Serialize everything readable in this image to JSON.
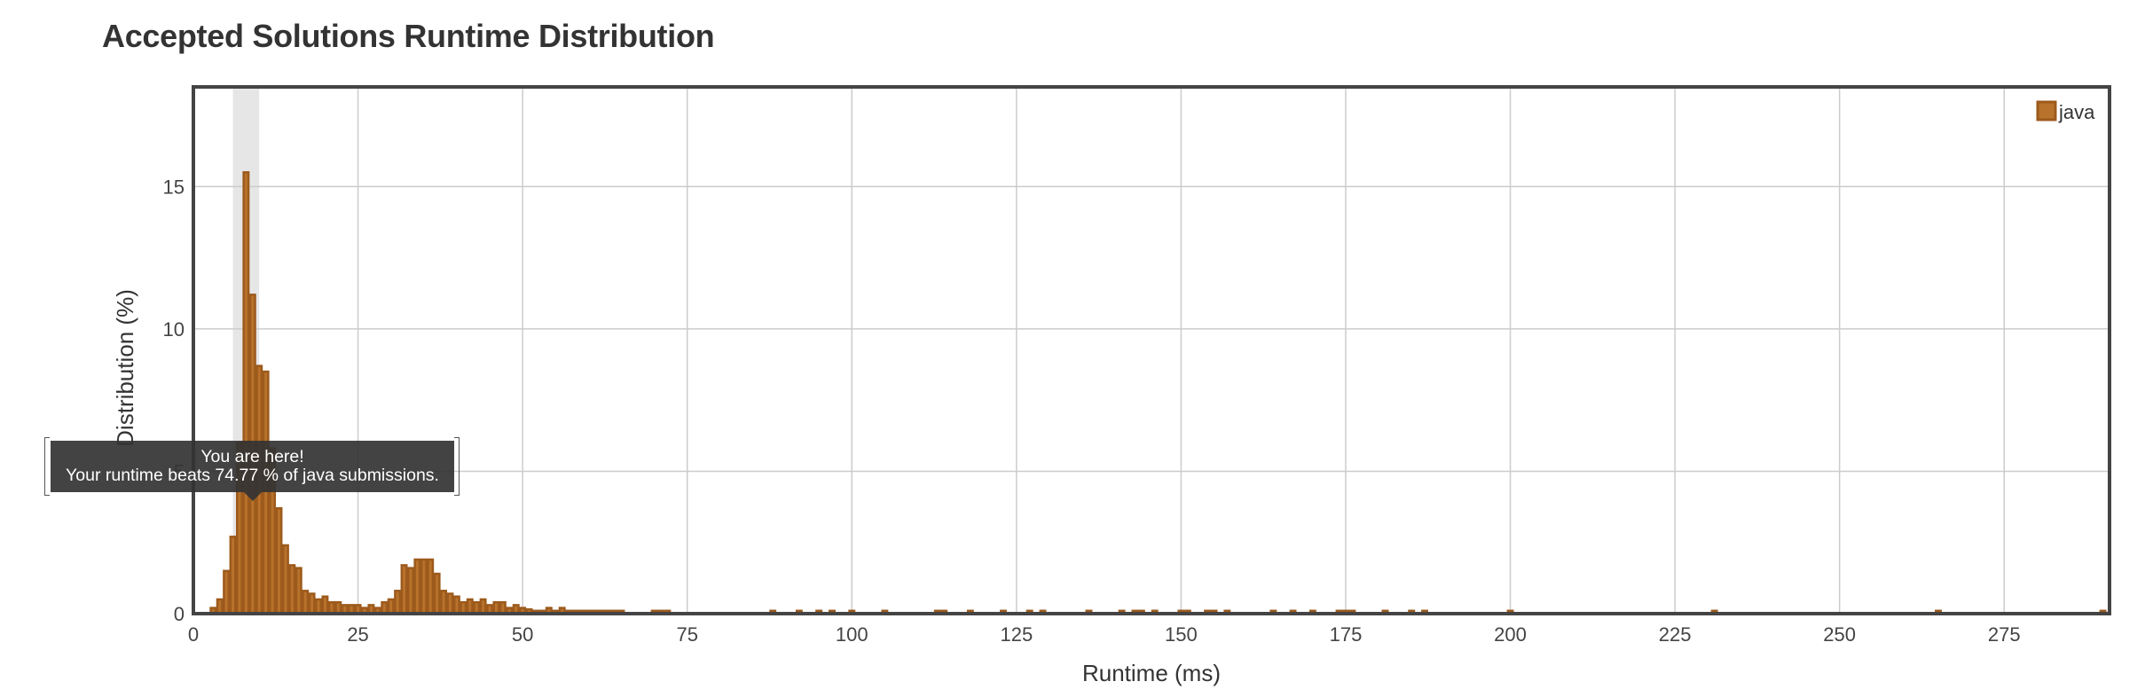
{
  "chart_data": {
    "type": "bar",
    "title": "Accepted Solutions Runtime Distribution",
    "xlabel": "Runtime (ms)",
    "ylabel": "Distribution (%)",
    "xlim": [
      0,
      291
    ],
    "ylim": [
      0,
      18.5
    ],
    "x_ticks": [
      0,
      25,
      50,
      75,
      100,
      125,
      150,
      175,
      200,
      225,
      250,
      275
    ],
    "y_ticks": [
      0,
      5,
      10,
      15
    ],
    "grid": true,
    "legend": {
      "position": "top-right",
      "entries": [
        "java"
      ]
    },
    "series": [
      {
        "name": "java",
        "color": "#b8722c",
        "edge_color": "#9c5a1c",
        "points": [
          [
            3,
            0.2
          ],
          [
            4,
            0.5
          ],
          [
            5,
            1.5
          ],
          [
            6,
            2.7
          ],
          [
            7,
            6.0
          ],
          [
            8,
            15.5
          ],
          [
            9,
            11.2
          ],
          [
            10,
            8.7
          ],
          [
            11,
            8.5
          ],
          [
            12,
            5.8
          ],
          [
            13,
            3.7
          ],
          [
            14,
            2.4
          ],
          [
            15,
            1.7
          ],
          [
            16,
            1.6
          ],
          [
            17,
            0.8
          ],
          [
            18,
            0.7
          ],
          [
            19,
            0.5
          ],
          [
            20,
            0.6
          ],
          [
            21,
            0.4
          ],
          [
            22,
            0.4
          ],
          [
            23,
            0.3
          ],
          [
            24,
            0.3
          ],
          [
            25,
            0.3
          ],
          [
            26,
            0.2
          ],
          [
            27,
            0.3
          ],
          [
            28,
            0.2
          ],
          [
            29,
            0.4
          ],
          [
            30,
            0.5
          ],
          [
            31,
            0.8
          ],
          [
            32,
            1.7
          ],
          [
            33,
            1.6
          ],
          [
            34,
            1.9
          ],
          [
            35,
            1.9
          ],
          [
            36,
            1.9
          ],
          [
            37,
            1.4
          ],
          [
            38,
            0.8
          ],
          [
            39,
            0.7
          ],
          [
            40,
            0.6
          ],
          [
            41,
            0.4
          ],
          [
            42,
            0.5
          ],
          [
            43,
            0.4
          ],
          [
            44,
            0.5
          ],
          [
            45,
            0.3
          ],
          [
            46,
            0.4
          ],
          [
            47,
            0.4
          ],
          [
            48,
            0.2
          ],
          [
            49,
            0.3
          ],
          [
            50,
            0.2
          ],
          [
            51,
            0.15
          ],
          [
            52,
            0.1
          ],
          [
            53,
            0.1
          ],
          [
            54,
            0.2
          ],
          [
            55,
            0.1
          ],
          [
            56,
            0.2
          ],
          [
            57,
            0.1
          ],
          [
            58,
            0.1
          ],
          [
            59,
            0.1
          ],
          [
            60,
            0.1
          ],
          [
            61,
            0.1
          ],
          [
            62,
            0.1
          ],
          [
            63,
            0.1
          ],
          [
            64,
            0.1
          ],
          [
            65,
            0.1
          ],
          [
            70,
            0.1
          ],
          [
            71,
            0.1
          ],
          [
            72,
            0.1
          ],
          [
            88,
            0.1
          ],
          [
            92,
            0.1
          ],
          [
            95,
            0.1
          ],
          [
            97,
            0.1
          ],
          [
            100,
            0.1
          ],
          [
            105,
            0.1
          ],
          [
            113,
            0.1
          ],
          [
            114,
            0.1
          ],
          [
            118,
            0.1
          ],
          [
            123,
            0.1
          ],
          [
            127,
            0.1
          ],
          [
            129,
            0.1
          ],
          [
            136,
            0.1
          ],
          [
            141,
            0.1
          ],
          [
            143,
            0.1
          ],
          [
            144,
            0.1
          ],
          [
            146,
            0.1
          ],
          [
            150,
            0.1
          ],
          [
            151,
            0.1
          ],
          [
            154,
            0.1
          ],
          [
            155,
            0.1
          ],
          [
            157,
            0.1
          ],
          [
            164,
            0.1
          ],
          [
            167,
            0.1
          ],
          [
            170,
            0.1
          ],
          [
            174,
            0.1
          ],
          [
            175,
            0.1
          ],
          [
            176,
            0.1
          ],
          [
            181,
            0.1
          ],
          [
            185,
            0.1
          ],
          [
            187,
            0.1
          ],
          [
            200,
            0.1
          ],
          [
            231,
            0.1
          ],
          [
            265,
            0.1
          ],
          [
            290,
            0.1
          ]
        ]
      }
    ],
    "highlight_band": {
      "from": 6,
      "to": 10,
      "color": "#e6e6e6"
    },
    "annotation": {
      "line1": "You are here!",
      "line2": "Your runtime beats 74.77 % of java submissions."
    }
  }
}
